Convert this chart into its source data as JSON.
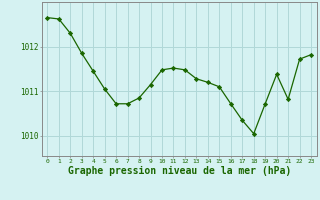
{
  "x": [
    0,
    1,
    2,
    3,
    4,
    5,
    6,
    7,
    8,
    9,
    10,
    11,
    12,
    13,
    14,
    15,
    16,
    17,
    18,
    19,
    20,
    21,
    22,
    23
  ],
  "y": [
    1012.65,
    1012.62,
    1012.3,
    1011.85,
    1011.45,
    1011.05,
    1010.72,
    1010.72,
    1010.85,
    1011.15,
    1011.48,
    1011.52,
    1011.48,
    1011.28,
    1011.2,
    1011.1,
    1010.72,
    1010.35,
    1010.05,
    1010.72,
    1011.38,
    1010.82,
    1011.72,
    1011.82
  ],
  "line_color": "#1a6600",
  "marker": "D",
  "marker_size": 2.2,
  "bg_color": "#d5f2f2",
  "grid_color": "#b0d8d8",
  "ylabel_ticks": [
    1010,
    1011,
    1012
  ],
  "xlabel": "Graphe pression niveau de la mer (hPa)",
  "xlabel_fontsize": 7.0,
  "xlabel_color": "#1a6600",
  "ylim": [
    1009.55,
    1013.0
  ],
  "xlim": [
    -0.5,
    23.5
  ],
  "tick_color": "#1a6600",
  "border_color": "#888888"
}
